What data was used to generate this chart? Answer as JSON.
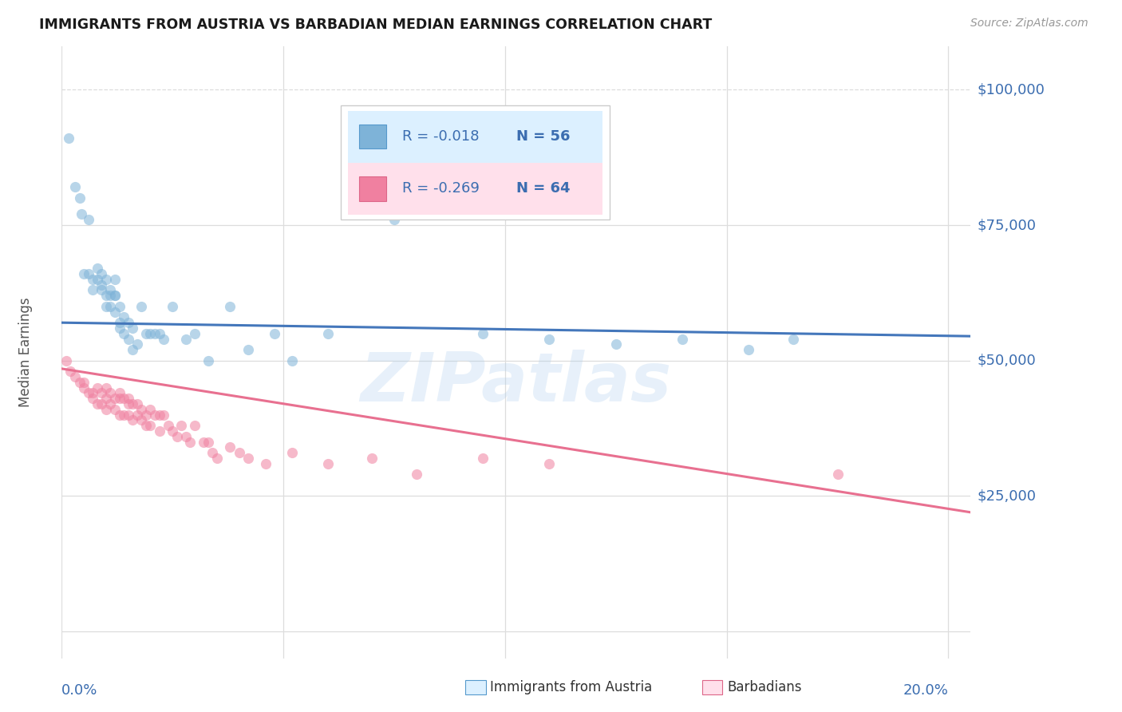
{
  "title": "IMMIGRANTS FROM AUSTRIA VS BARBADIAN MEDIAN EARNINGS CORRELATION CHART",
  "source": "Source: ZipAtlas.com",
  "ylabel": "Median Earnings",
  "xlim": [
    0.0,
    0.205
  ],
  "ylim": [
    -5000,
    108000
  ],
  "ytick_vals": [
    25000,
    50000,
    75000,
    100000
  ],
  "ytick_labels": [
    "$25,000",
    "$50,000",
    "$75,000",
    "$100,000"
  ],
  "legend_r1": "R = -0.018",
  "legend_n1": "N = 56",
  "legend_r2": "R = -0.269",
  "legend_n2": "N = 64",
  "watermark": "ZIPatlas",
  "austria_color": "#7EB3D8",
  "barbados_color": "#F080A0",
  "austria_scatter_x": [
    0.0015,
    0.003,
    0.004,
    0.0045,
    0.005,
    0.006,
    0.006,
    0.007,
    0.007,
    0.008,
    0.008,
    0.009,
    0.009,
    0.009,
    0.01,
    0.01,
    0.01,
    0.011,
    0.011,
    0.011,
    0.012,
    0.012,
    0.012,
    0.012,
    0.013,
    0.013,
    0.013,
    0.014,
    0.014,
    0.015,
    0.015,
    0.016,
    0.016,
    0.017,
    0.018,
    0.019,
    0.02,
    0.021,
    0.022,
    0.023,
    0.025,
    0.028,
    0.03,
    0.033,
    0.038,
    0.042,
    0.048,
    0.052,
    0.06,
    0.075,
    0.095,
    0.11,
    0.125,
    0.14,
    0.155,
    0.165
  ],
  "austria_scatter_y": [
    91000,
    82000,
    80000,
    77000,
    66000,
    66000,
    76000,
    65000,
    63000,
    65000,
    67000,
    63000,
    66000,
    64000,
    62000,
    60000,
    65000,
    62000,
    60000,
    63000,
    65000,
    62000,
    62000,
    59000,
    57000,
    60000,
    56000,
    58000,
    55000,
    57000,
    54000,
    56000,
    52000,
    53000,
    60000,
    55000,
    55000,
    55000,
    55000,
    54000,
    60000,
    54000,
    55000,
    50000,
    60000,
    52000,
    55000,
    50000,
    55000,
    76000,
    55000,
    54000,
    53000,
    54000,
    52000,
    54000
  ],
  "barbados_scatter_x": [
    0.001,
    0.002,
    0.003,
    0.004,
    0.005,
    0.005,
    0.006,
    0.007,
    0.007,
    0.008,
    0.008,
    0.009,
    0.009,
    0.01,
    0.01,
    0.01,
    0.011,
    0.011,
    0.012,
    0.012,
    0.013,
    0.013,
    0.013,
    0.014,
    0.014,
    0.015,
    0.015,
    0.015,
    0.016,
    0.016,
    0.017,
    0.017,
    0.018,
    0.018,
    0.019,
    0.019,
    0.02,
    0.02,
    0.021,
    0.022,
    0.022,
    0.023,
    0.024,
    0.025,
    0.026,
    0.027,
    0.028,
    0.029,
    0.03,
    0.032,
    0.033,
    0.034,
    0.035,
    0.038,
    0.04,
    0.042,
    0.046,
    0.052,
    0.06,
    0.07,
    0.08,
    0.095,
    0.11,
    0.175
  ],
  "barbados_scatter_y": [
    50000,
    48000,
    47000,
    46000,
    46000,
    45000,
    44000,
    44000,
    43000,
    45000,
    42000,
    44000,
    42000,
    45000,
    43000,
    41000,
    44000,
    42000,
    43000,
    41000,
    43000,
    40000,
    44000,
    43000,
    40000,
    42000,
    40000,
    43000,
    42000,
    39000,
    42000,
    40000,
    41000,
    39000,
    40000,
    38000,
    41000,
    38000,
    40000,
    40000,
    37000,
    40000,
    38000,
    37000,
    36000,
    38000,
    36000,
    35000,
    38000,
    35000,
    35000,
    33000,
    32000,
    34000,
    33000,
    32000,
    31000,
    33000,
    31000,
    32000,
    29000,
    32000,
    31000,
    29000
  ],
  "austria_trend_x": [
    0.0,
    0.205
  ],
  "austria_trend_y": [
    57000,
    54500
  ],
  "barbados_trend_x": [
    0.0,
    0.205
  ],
  "barbados_trend_y": [
    48500,
    22000
  ],
  "grid_color": "#DDDDDD",
  "bg_color": "#FFFFFF",
  "title_color": "#1A1A1A",
  "ylabel_color": "#555555",
  "axis_num_color": "#3B6DB0"
}
